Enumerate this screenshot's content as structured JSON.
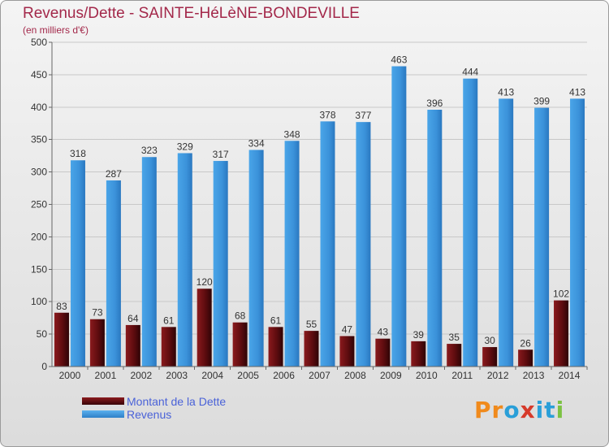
{
  "title": "Revenus/Dette - SAINTE-HéLèNE-BONDEVILLE",
  "subtitle": "(en milliers d'€)",
  "chart_data": {
    "type": "bar",
    "categories": [
      "2000",
      "2001",
      "2002",
      "2003",
      "2004",
      "2005",
      "2006",
      "2007",
      "2008",
      "2009",
      "2010",
      "2011",
      "2012",
      "2013",
      "2014"
    ],
    "series": [
      {
        "name": "Montant de la Dette",
        "color": "#6b0f12",
        "values": [
          83,
          73,
          64,
          61,
          120,
          68,
          61,
          55,
          47,
          43,
          39,
          35,
          30,
          26,
          102
        ]
      },
      {
        "name": "Revenus",
        "color": "#3f97de",
        "values": [
          318,
          287,
          323,
          329,
          317,
          334,
          348,
          378,
          377,
          463,
          396,
          444,
          413,
          399,
          413
        ]
      }
    ],
    "ylim": [
      0,
      500
    ],
    "yticks": [
      0,
      50,
      100,
      150,
      200,
      250,
      300,
      350,
      400,
      450,
      500
    ],
    "grid": true,
    "legend_position": "bottom-left"
  },
  "logo": {
    "text": "Proxiti",
    "letter_colors": [
      "#f08a1c",
      "#f08a1c",
      "#2a9fd8",
      "#d63a2a",
      "#2a9fd8",
      "#2a9fd8",
      "#7cc242"
    ]
  }
}
